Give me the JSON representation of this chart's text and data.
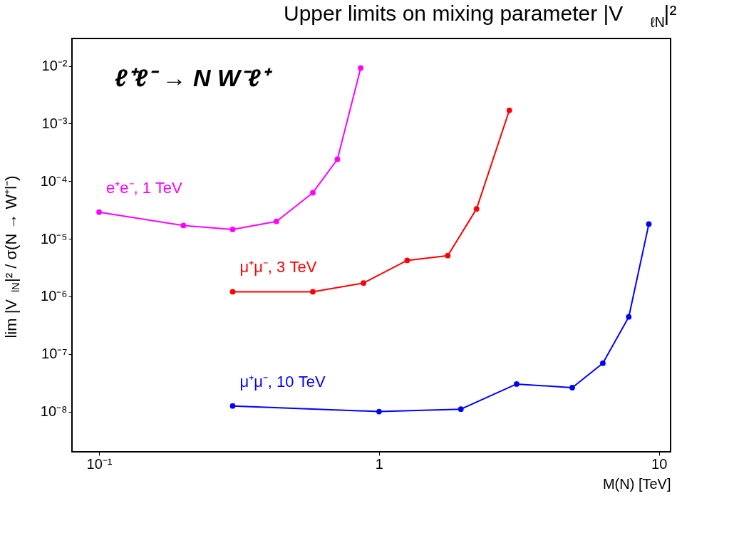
{
  "chart_data": {
    "type": "line",
    "title": "Upper limits on mixing parameter |V$_{ℓN}$|²",
    "xlabel": "M(N)   [TeV]",
    "ylabel": "lim |V$_{lN}$|² / σ(N → W⁺l⁻)",
    "annotations": [
      "ℓ⁺ℓ⁻ → N W⁻ℓ⁺"
    ],
    "log": "xy",
    "grid": false,
    "legend": false,
    "marker": "circle",
    "line_style": "solid",
    "xlim": [
      0.08,
      11
    ],
    "ylim": [
      2e-09,
      0.03
    ],
    "xticks": [
      {
        "value": 0.1,
        "label": "10⁻¹"
      },
      1,
      10
    ],
    "yticks": [
      {
        "value": 1e-08,
        "label": "10⁻⁸"
      },
      {
        "value": 1e-07,
        "label": "10⁻⁷"
      },
      {
        "value": 1e-06,
        "label": "10⁻⁶"
      },
      {
        "value": 1e-05,
        "label": "10⁻⁵"
      },
      {
        "value": 0.0001,
        "label": "10⁻⁴"
      },
      {
        "value": 0.001,
        "label": "10⁻³"
      },
      {
        "value": 0.01,
        "label": "10⁻²"
      }
    ],
    "series": [
      {
        "name": "e⁺e⁻, 1 TeV",
        "color": "#ff00ff",
        "x": [
          0.1,
          0.2,
          0.3,
          0.43,
          0.58,
          0.71,
          0.86
        ],
        "values": [
          2.9e-05,
          1.7e-05,
          1.45e-05,
          2e-05,
          6.3e-05,
          0.00024,
          0.0092
        ]
      },
      {
        "name": "μ⁺μ⁻, 3 TeV",
        "color": "#ff0000",
        "x": [
          0.3,
          0.58,
          0.88,
          1.26,
          1.76,
          2.23,
          2.92
        ],
        "values": [
          1.2e-06,
          1.2e-06,
          1.7e-06,
          4.2e-06,
          5.1e-06,
          3.3e-05,
          0.0017
        ]
      },
      {
        "name": "μ⁺μ⁻, 10 TeV",
        "color": "#0000ff",
        "x": [
          0.3,
          1,
          1.96,
          3.1,
          4.9,
          6.3,
          7.8,
          9.2
        ],
        "values": [
          1.25e-08,
          1e-08,
          1.1e-08,
          3e-08,
          2.6e-08,
          6.9e-08,
          4.4e-07,
          1.8e-05
        ]
      }
    ]
  }
}
